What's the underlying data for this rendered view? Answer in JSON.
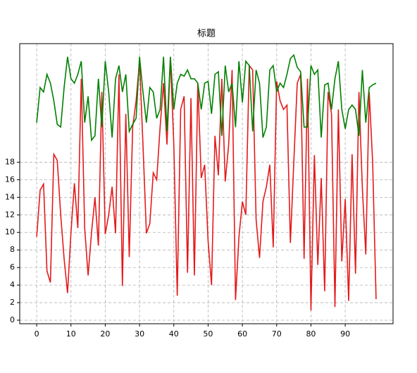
{
  "chart_data": {
    "type": "line",
    "title": "标题",
    "x": [
      0,
      1,
      2,
      3,
      4,
      5,
      6,
      7,
      8,
      9,
      10,
      11,
      12,
      13,
      14,
      15,
      16,
      17,
      18,
      19,
      20,
      21,
      22,
      23,
      24,
      25,
      26,
      27,
      28,
      29,
      30,
      31,
      32,
      33,
      34,
      35,
      36,
      37,
      38,
      39,
      40,
      41,
      42,
      43,
      44,
      45,
      46,
      47,
      48,
      49,
      50,
      51,
      52,
      53,
      54,
      55,
      56,
      57,
      58,
      59,
      60,
      61,
      62,
      63,
      64,
      65,
      66,
      67,
      68,
      69,
      70,
      71,
      72,
      73,
      74,
      75,
      76,
      77,
      78,
      79,
      80,
      81,
      82,
      83,
      84,
      85,
      86,
      87,
      88,
      89,
      90,
      91,
      92,
      93,
      94,
      95,
      96,
      97,
      98,
      99
    ],
    "series": [
      {
        "color": "#e41a1c",
        "values": [
          9.5,
          14.8,
          15.5,
          5.6,
          4.3,
          18.9,
          18.2,
          12,
          7,
          3.1,
          10,
          15.6,
          10.5,
          27.5,
          10.5,
          5.1,
          10,
          14,
          8.5,
          26,
          9.8,
          12,
          15.2,
          9.9,
          28,
          3.9,
          23.5,
          7.2,
          22,
          25,
          29.5,
          20,
          9.9,
          11,
          16.8,
          16,
          22,
          27,
          20,
          29.8,
          20,
          2.8,
          24,
          25.5,
          5.4,
          25.3,
          5.1,
          27,
          16.2,
          17.7,
          9,
          4,
          21,
          16.5,
          27.5,
          15.8,
          20,
          28.5,
          2.3,
          9.5,
          13.5,
          12,
          29,
          28.5,
          11.5,
          7.1,
          13.5,
          15.2,
          17.7,
          8.3,
          27.2,
          25,
          24,
          24.5,
          8.8,
          18,
          27,
          28,
          7,
          27.5,
          1.1,
          18.8,
          6.3,
          16.2,
          3.3,
          26,
          23.5,
          1.5,
          24,
          6.7,
          13.8,
          2.2,
          18.9,
          5.3,
          26,
          15,
          7.5,
          26,
          18,
          2.4
        ]
      },
      {
        "color": "#008000",
        "values": [
          22.5,
          26.5,
          26,
          28,
          27,
          25,
          22.3,
          22,
          26.5,
          30,
          27.5,
          27,
          28,
          29.5,
          22.5,
          25.5,
          20.5,
          21,
          27.5,
          22,
          29.5,
          26,
          20.8,
          27.5,
          29,
          26,
          28,
          21.5,
          22.3,
          23,
          30,
          26,
          22.5,
          26.5,
          26,
          23,
          24,
          30,
          21.5,
          30,
          24,
          27,
          28,
          27.8,
          28.5,
          27.5,
          27.5,
          27,
          24,
          27,
          27.2,
          23.5,
          28,
          28.3,
          21,
          29,
          26,
          27,
          22,
          29.5,
          24.8,
          29.5,
          29,
          21.5,
          28.5,
          27,
          20.8,
          22,
          28.5,
          29,
          26,
          27,
          26.5,
          28,
          29.8,
          30.2,
          28.8,
          28.3,
          22,
          22,
          29,
          28,
          28.5,
          20.8,
          26.8,
          27,
          24,
          27.5,
          29.5,
          24,
          21.8,
          24,
          24.5,
          24,
          21,
          28.5,
          22.5,
          26.5,
          26.8,
          27
        ]
      }
    ],
    "xlim": [
      -4.95,
      103.95
    ],
    "ylim": [
      -0.4,
      31.5
    ],
    "xticks": [
      0,
      10,
      20,
      30,
      40,
      50,
      60,
      70,
      80,
      90
    ],
    "yticks": [
      0,
      2,
      4,
      6,
      8,
      10,
      12,
      14,
      16,
      18
    ],
    "grid": true
  }
}
